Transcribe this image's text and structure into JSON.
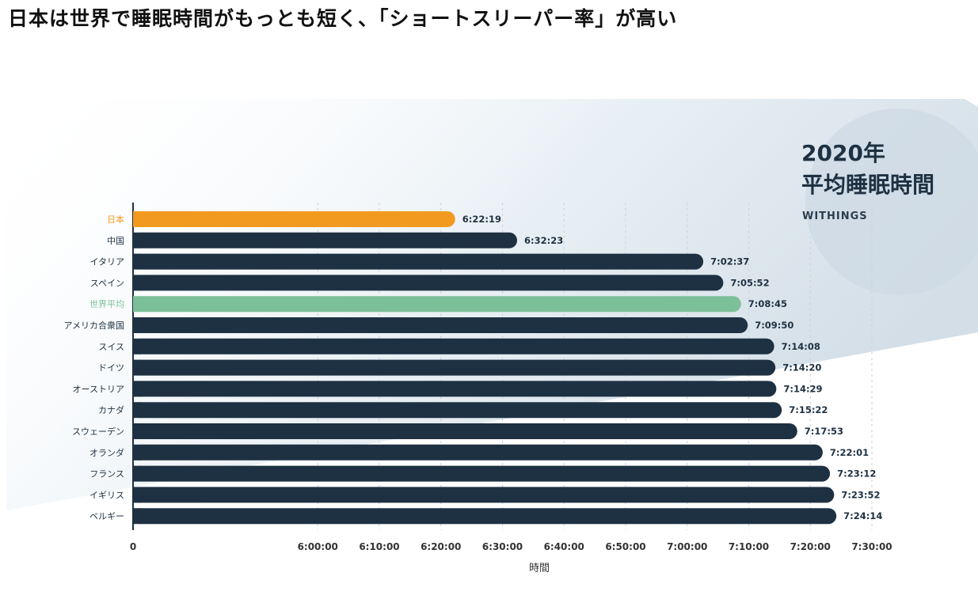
{
  "headline": "日本は世界で睡眠時間がもっとも短く、「ショートスリーパー率」が高い",
  "chart_data": {
    "type": "bar",
    "orientation": "horizontal",
    "title_line1": "2020年",
    "title_line2": "平均睡眠時間",
    "brand": "WITHINGS",
    "xlabel": "時間",
    "x_axis_range_seconds": [
      19800,
      27000
    ],
    "tick_labels": [
      "0",
      "6:00:00",
      "6:10:00",
      "6:20:00",
      "6:30:00",
      "6:40:00",
      "6:50:00",
      "7:00:00",
      "7:10:00",
      "7:20:00",
      "7:30:00"
    ],
    "tick_values_seconds": [
      19800,
      21600,
      22200,
      22800,
      23400,
      24000,
      24600,
      25200,
      25800,
      26400,
      27000
    ],
    "bars": [
      {
        "label": "日本",
        "value": "6:22:19",
        "seconds": 22939,
        "color": "#f29a1f"
      },
      {
        "label": "中国",
        "value": "6:32:23",
        "seconds": 23543,
        "color": "#1e3142"
      },
      {
        "label": "イタリア",
        "value": "7:02:37",
        "seconds": 25357,
        "color": "#1e3142"
      },
      {
        "label": "スペイン",
        "value": "7:05:52",
        "seconds": 25552,
        "color": "#1e3142"
      },
      {
        "label": "世界平均",
        "value": "7:08:45",
        "seconds": 25725,
        "color": "#7cc09a"
      },
      {
        "label": "アメリカ合衆国",
        "value": "7:09:50",
        "seconds": 25790,
        "color": "#1e3142"
      },
      {
        "label": "スイス",
        "value": "7:14:08",
        "seconds": 26048,
        "color": "#1e3142"
      },
      {
        "label": "ドイツ",
        "value": "7:14:20",
        "seconds": 26060,
        "color": "#1e3142"
      },
      {
        "label": "オーストリア",
        "value": "7:14:29",
        "seconds": 26069,
        "color": "#1e3142"
      },
      {
        "label": "カナダ",
        "value": "7:15:22",
        "seconds": 26122,
        "color": "#1e3142"
      },
      {
        "label": "スウェーデン",
        "value": "7:17:53",
        "seconds": 26273,
        "color": "#1e3142"
      },
      {
        "label": "オランダ",
        "value": "7:22:01",
        "seconds": 26521,
        "color": "#1e3142"
      },
      {
        "label": "フランス",
        "value": "7:23:12",
        "seconds": 26592,
        "color": "#1e3142"
      },
      {
        "label": "イギリス",
        "value": "7:23:52",
        "seconds": 26632,
        "color": "#1e3142"
      },
      {
        "label": "ベルギー",
        "value": "7:24:14",
        "seconds": 26654,
        "color": "#1e3142"
      }
    ]
  }
}
